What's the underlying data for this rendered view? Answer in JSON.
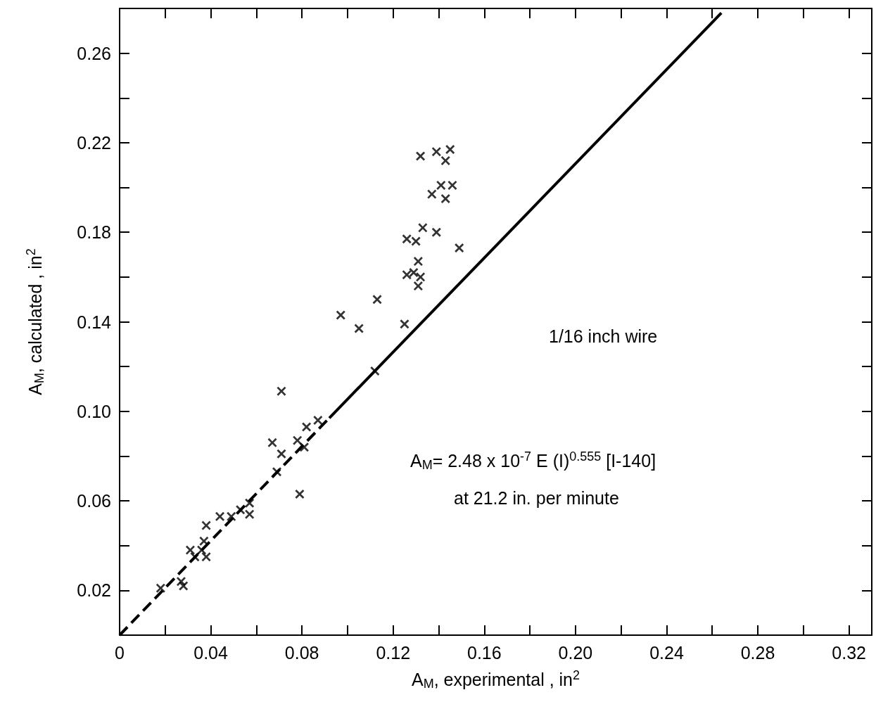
{
  "chart_data": {
    "type": "scatter",
    "xlabel": "A$_{M}$, experimental , in$^{2}$",
    "ylabel": "A$_{M}$, calculated , in$^{2}$",
    "annotations": [
      "1/16 inch wire",
      "A$_{M}$= 2.48 x 10$^{-7}$ E (I)$^{0.555}$ [I-140]",
      "at 21.2 in. per minute"
    ],
    "xlim": [
      0,
      0.33
    ],
    "ylim": [
      0,
      0.28
    ],
    "xticks": [
      0,
      {
        "value": 0.02,
        "label": null
      },
      0.04,
      {
        "value": 0.06,
        "label": null
      },
      0.08,
      {
        "value": 0.1,
        "label": null
      },
      0.12,
      {
        "value": 0.14,
        "label": null
      },
      0.16,
      {
        "value": 0.18,
        "label": null
      },
      {
        "value": 0.2,
        "label": "0.20"
      },
      {
        "value": 0.22,
        "label": null
      },
      0.24,
      {
        "value": 0.26,
        "label": null
      },
      0.28,
      {
        "value": 0.3,
        "label": null
      },
      0.32
    ],
    "yticks": [
      0.02,
      {
        "value": 0.04,
        "label": null
      },
      0.06,
      {
        "value": 0.08,
        "label": null
      },
      {
        "value": 0.1,
        "label": "0.10"
      },
      {
        "value": 0.12,
        "label": null
      },
      0.14,
      {
        "value": 0.16,
        "label": null
      },
      0.18,
      {
        "value": 0.2,
        "label": null
      },
      0.22,
      {
        "value": 0.24,
        "label": null
      },
      0.26
    ],
    "grid": false,
    "series": [
      {
        "type": "scatter",
        "marker": "cross",
        "color": "#000000",
        "x": [
          0.071,
          0.087,
          0.082,
          0.067,
          0.078,
          0.081,
          0.071,
          0.069,
          0.079,
          0.044,
          0.049,
          0.053,
          0.057,
          0.057,
          0.038,
          0.037,
          0.036,
          0.038,
          0.031,
          0.033,
          0.018,
          0.027,
          0.028,
          0.112,
          0.097,
          0.105,
          0.113,
          0.125,
          0.131,
          0.126,
          0.129,
          0.132,
          0.131,
          0.126,
          0.13,
          0.133,
          0.139,
          0.149,
          0.137,
          0.141,
          0.146,
          0.143,
          0.132,
          0.139,
          0.145,
          0.143
        ],
        "values": [
          0.109,
          0.096,
          0.093,
          0.086,
          0.087,
          0.084,
          0.081,
          0.073,
          0.063,
          0.053,
          0.053,
          0.056,
          0.059,
          0.054,
          0.049,
          0.042,
          0.038,
          0.035,
          0.038,
          0.035,
          0.021,
          0.024,
          0.022,
          0.118,
          0.143,
          0.137,
          0.15,
          0.139,
          0.156,
          0.161,
          0.162,
          0.16,
          0.167,
          0.177,
          0.176,
          0.182,
          0.18,
          0.173,
          0.197,
          0.201,
          0.201,
          0.195,
          0.214,
          0.216,
          0.217,
          0.212
        ]
      },
      {
        "type": "line",
        "marker": "none",
        "line_style": "dashed",
        "color": "#000000",
        "x": [
          0,
          0.092
        ],
        "values": [
          0,
          0.097
        ]
      },
      {
        "type": "line",
        "marker": "none",
        "line_style": "solid",
        "color": "#000000",
        "x": [
          0.092,
          0.264
        ],
        "values": [
          0.097,
          0.278
        ]
      }
    ]
  }
}
